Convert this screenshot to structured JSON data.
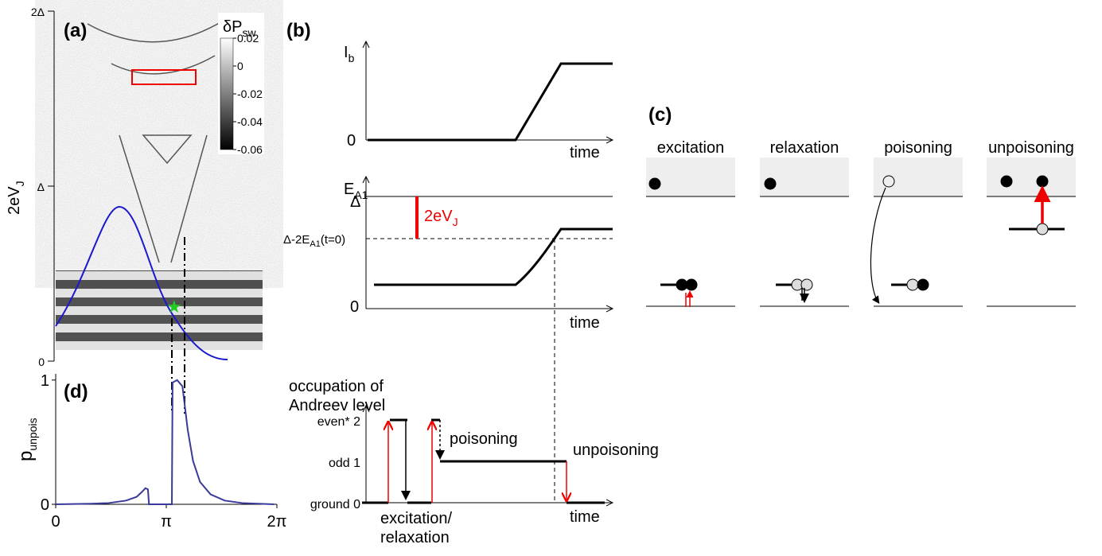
{
  "chart_data": {
    "type": "line",
    "title": "(d)",
    "ylabel": {
      "main": "p",
      "sub": "unpois"
    },
    "x": [
      0,
      1,
      1.5,
      2,
      2.3,
      2.45,
      2.55,
      2.62,
      2.65,
      3.2,
      3.3,
      3.32,
      3.45,
      3.6,
      3.75,
      3.9,
      4.1,
      4.4,
      4.8,
      5.3,
      6.2
    ],
    "series": [
      {
        "color": "#3a3a9a",
        "values": [
          0,
          0.005,
          0.01,
          0.03,
          0.06,
          0.1,
          0.13,
          0.12,
          0,
          0,
          0,
          0.98,
          1,
          0.95,
          0.6,
          0.35,
          0.18,
          0.08,
          0.03,
          0.01,
          0
        ]
      }
    ],
    "xlim": [
      0,
      6.2832
    ],
    "ylim": [
      0,
      1.05
    ],
    "xticks": [
      0,
      {
        "value": 3.1416,
        "label": "π"
      },
      {
        "value": 6.2832,
        "label": "2π"
      }
    ],
    "yticks": [
      0,
      1
    ]
  },
  "panel_a": {
    "label": "(a)",
    "ylabel": {
      "main": "2eV",
      "sub": "J"
    },
    "yticks": [
      "2Δ",
      "Δ",
      "0"
    ],
    "colorbar": {
      "title": {
        "main": "δP",
        "sub": "sw"
      },
      "lim": [
        0.02,
        -0.06
      ],
      "ticks": [
        0.02,
        0,
        -0.02,
        -0.04,
        -0.06
      ]
    }
  },
  "panel_b": {
    "label": "(b)",
    "top": {
      "ylabel": {
        "main": "I",
        "sub": "b"
      },
      "zero": "0",
      "xlabel": "time"
    },
    "middle": {
      "ylabel": {
        "main": "E",
        "sub": "A1"
      },
      "delta": "Δ",
      "level": {
        "main": "Δ-2E",
        "sub": "A1",
        "tail": "(t=0)"
      },
      "zero": "0",
      "bar": {
        "main": "2eV",
        "sub": "J"
      },
      "xlabel": "time"
    },
    "bottom": {
      "title": [
        "occupation of",
        "Andreev level"
      ],
      "ticks": [
        "even* 2",
        "odd 1",
        "ground 0"
      ],
      "poisoning": "poisoning",
      "unpoisoning": "unpoisoning",
      "excitation": [
        "excitation/",
        "relaxation"
      ],
      "xlabel": "time"
    }
  },
  "panel_c": {
    "label": "(c)",
    "processes": [
      "excitation",
      "relaxation",
      "poisoning",
      "unpoisoning"
    ]
  }
}
